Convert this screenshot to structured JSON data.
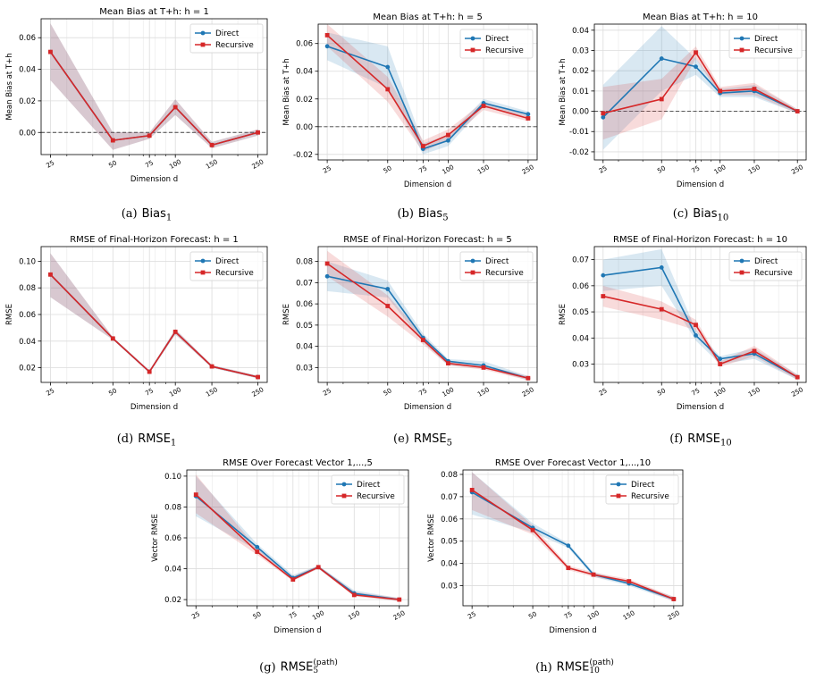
{
  "legend": {
    "direct": "Direct",
    "recursive": "Recursive"
  },
  "colors": {
    "direct": "#1f77b4",
    "recursive": "#d62728"
  },
  "captions": [
    {
      "tag": "(a)",
      "name": "Bias",
      "sub": "1",
      "sup": ""
    },
    {
      "tag": "(b)",
      "name": "Bias",
      "sub": "5",
      "sup": ""
    },
    {
      "tag": "(c)",
      "name": "Bias",
      "sub": "10",
      "sup": ""
    },
    {
      "tag": "(d)",
      "name": "RMSE",
      "sub": "1",
      "sup": ""
    },
    {
      "tag": "(e)",
      "name": "RMSE",
      "sub": "5",
      "sup": ""
    },
    {
      "tag": "(f)",
      "name": "RMSE",
      "sub": "10",
      "sup": ""
    },
    {
      "tag": "(g)",
      "name": "RMSE",
      "sub": "5",
      "sup": "(path)"
    },
    {
      "tag": "(h)",
      "name": "RMSE",
      "sub": "10",
      "sup": "(path)"
    }
  ],
  "chart_data": [
    {
      "type": "line",
      "title": "Mean Bias at T+h: h = 1",
      "xlabel": "Dimension d",
      "ylabel": "Mean Bias at T+h",
      "x": [
        25,
        50,
        75,
        100,
        150,
        250
      ],
      "x_scale": "log",
      "ylim": [
        -0.014,
        0.072
      ],
      "yticks": [
        0.0,
        0.02,
        0.04,
        0.06
      ],
      "tick_decimals": 2,
      "zero_line": true,
      "grid": true,
      "legend_position": "top-right",
      "series": [
        {
          "name": "Direct",
          "values": [
            0.051,
            -0.005,
            -0.002,
            0.016,
            -0.008,
            0.0
          ],
          "band_low": [
            0.033,
            -0.011,
            -0.004,
            0.011,
            -0.01,
            -0.002
          ],
          "band_high": [
            0.069,
            0.0,
            0.0,
            0.021,
            -0.006,
            0.002
          ]
        },
        {
          "name": "Recursive",
          "values": [
            0.051,
            -0.005,
            -0.002,
            0.016,
            -0.008,
            0.0
          ],
          "band_low": [
            0.033,
            -0.011,
            -0.004,
            0.011,
            -0.01,
            -0.002
          ],
          "band_high": [
            0.069,
            0.0,
            0.0,
            0.021,
            -0.006,
            0.002
          ]
        }
      ]
    },
    {
      "type": "line",
      "title": "Mean Bias at T+h: h = 5",
      "xlabel": "Dimension d",
      "ylabel": "Mean Bias at T+h",
      "x": [
        25,
        50,
        75,
        100,
        150,
        250
      ],
      "x_scale": "log",
      "ylim": [
        -0.024,
        0.074
      ],
      "yticks": [
        -0.02,
        0.0,
        0.02,
        0.04,
        0.06
      ],
      "tick_decimals": 2,
      "zero_line": true,
      "grid": true,
      "legend_position": "top-right",
      "series": [
        {
          "name": "Direct",
          "values": [
            0.058,
            0.043,
            -0.016,
            -0.01,
            0.017,
            0.009
          ],
          "band_low": [
            0.048,
            0.028,
            -0.02,
            -0.014,
            0.014,
            0.007
          ],
          "band_high": [
            0.068,
            0.058,
            -0.012,
            -0.006,
            0.02,
            0.011
          ]
        },
        {
          "name": "Recursive",
          "values": [
            0.066,
            0.027,
            -0.014,
            -0.006,
            0.015,
            0.006
          ],
          "band_low": [
            0.058,
            0.018,
            -0.018,
            -0.01,
            0.012,
            0.004
          ],
          "band_high": [
            0.074,
            0.036,
            -0.01,
            -0.002,
            0.018,
            0.008
          ]
        }
      ]
    },
    {
      "type": "line",
      "title": "Mean Bias at T+h: h = 10",
      "xlabel": "Dimension d",
      "ylabel": "Mean Bias at T+h",
      "x": [
        25,
        50,
        75,
        100,
        150,
        250
      ],
      "x_scale": "log",
      "ylim": [
        -0.024,
        0.043
      ],
      "yticks": [
        -0.02,
        -0.01,
        0.0,
        0.01,
        0.02,
        0.03,
        0.04
      ],
      "tick_decimals": 2,
      "zero_line": true,
      "grid": true,
      "legend_position": "top-right",
      "series": [
        {
          "name": "Direct",
          "values": [
            -0.003,
            0.026,
            0.022,
            0.009,
            0.01,
            0.0
          ],
          "band_low": [
            -0.019,
            0.01,
            0.018,
            0.007,
            0.007,
            -0.001
          ],
          "band_high": [
            0.013,
            0.042,
            0.026,
            0.011,
            0.013,
            0.001
          ]
        },
        {
          "name": "Recursive",
          "values": [
            -0.001,
            0.006,
            0.029,
            0.01,
            0.011,
            0.0
          ],
          "band_low": [
            -0.014,
            -0.004,
            0.026,
            0.008,
            0.008,
            -0.001
          ],
          "band_high": [
            0.012,
            0.016,
            0.032,
            0.012,
            0.014,
            0.001
          ]
        }
      ]
    },
    {
      "type": "line",
      "title": "RMSE of Final-Horizon Forecast: h = 1",
      "xlabel": "Dimension d",
      "ylabel": "RMSE",
      "x": [
        25,
        50,
        75,
        100,
        150,
        250
      ],
      "x_scale": "log",
      "ylim": [
        0.009,
        0.111
      ],
      "yticks": [
        0.02,
        0.04,
        0.06,
        0.08,
        0.1
      ],
      "tick_decimals": 2,
      "zero_line": false,
      "grid": true,
      "legend_position": "top-right",
      "series": [
        {
          "name": "Direct",
          "values": [
            0.09,
            0.042,
            0.017,
            0.047,
            0.021,
            0.013
          ],
          "band_low": [
            0.073,
            0.041,
            0.016,
            0.045,
            0.02,
            0.012
          ],
          "band_high": [
            0.106,
            0.043,
            0.018,
            0.049,
            0.022,
            0.014
          ]
        },
        {
          "name": "Recursive",
          "values": [
            0.09,
            0.042,
            0.017,
            0.047,
            0.021,
            0.013
          ],
          "band_low": [
            0.073,
            0.041,
            0.016,
            0.045,
            0.02,
            0.012
          ],
          "band_high": [
            0.106,
            0.043,
            0.018,
            0.049,
            0.022,
            0.014
          ]
        }
      ]
    },
    {
      "type": "line",
      "title": "RMSE of Final-Horizon Forecast: h = 5",
      "xlabel": "Dimension d",
      "ylabel": "RMSE",
      "x": [
        25,
        50,
        75,
        100,
        150,
        250
      ],
      "x_scale": "log",
      "ylim": [
        0.023,
        0.087
      ],
      "yticks": [
        0.03,
        0.04,
        0.05,
        0.06,
        0.07,
        0.08
      ],
      "tick_decimals": 2,
      "zero_line": false,
      "grid": true,
      "legend_position": "top-right",
      "series": [
        {
          "name": "Direct",
          "values": [
            0.073,
            0.067,
            0.044,
            0.033,
            0.031,
            0.025
          ],
          "band_low": [
            0.066,
            0.063,
            0.042,
            0.031,
            0.03,
            0.024
          ],
          "band_high": [
            0.08,
            0.071,
            0.046,
            0.034,
            0.033,
            0.026
          ]
        },
        {
          "name": "Recursive",
          "values": [
            0.079,
            0.059,
            0.043,
            0.032,
            0.03,
            0.025
          ],
          "band_low": [
            0.073,
            0.054,
            0.041,
            0.031,
            0.029,
            0.024
          ],
          "band_high": [
            0.085,
            0.064,
            0.045,
            0.033,
            0.031,
            0.026
          ]
        }
      ]
    },
    {
      "type": "line",
      "title": "RMSE of Final-Horizon Forecast: h = 10",
      "xlabel": "Dimension d",
      "ylabel": "RMSE",
      "x": [
        25,
        50,
        75,
        100,
        150,
        250
      ],
      "x_scale": "log",
      "ylim": [
        0.023,
        0.075
      ],
      "yticks": [
        0.03,
        0.04,
        0.05,
        0.06,
        0.07
      ],
      "tick_decimals": 2,
      "zero_line": false,
      "grid": true,
      "legend_position": "top-right",
      "series": [
        {
          "name": "Direct",
          "values": [
            0.064,
            0.067,
            0.041,
            0.032,
            0.034,
            0.025
          ],
          "band_low": [
            0.058,
            0.06,
            0.039,
            0.03,
            0.032,
            0.024
          ],
          "band_high": [
            0.07,
            0.074,
            0.043,
            0.033,
            0.036,
            0.026
          ]
        },
        {
          "name": "Recursive",
          "values": [
            0.056,
            0.051,
            0.045,
            0.03,
            0.035,
            0.025
          ],
          "band_low": [
            0.052,
            0.047,
            0.043,
            0.029,
            0.033,
            0.024
          ],
          "band_high": [
            0.06,
            0.054,
            0.047,
            0.031,
            0.037,
            0.026
          ]
        }
      ]
    },
    {
      "type": "line",
      "title": "RMSE Over Forecast Vector 1,...,5",
      "xlabel": "Dimension d",
      "ylabel": "Vector RMSE",
      "x": [
        25,
        50,
        75,
        100,
        150,
        250
      ],
      "x_scale": "log",
      "ylim": [
        0.016,
        0.104
      ],
      "yticks": [
        0.02,
        0.04,
        0.06,
        0.08,
        0.1
      ],
      "tick_decimals": 2,
      "zero_line": false,
      "grid": true,
      "legend_position": "top-right",
      "series": [
        {
          "name": "Direct",
          "values": [
            0.087,
            0.054,
            0.034,
            0.041,
            0.024,
            0.02
          ],
          "band_low": [
            0.074,
            0.052,
            0.033,
            0.04,
            0.023,
            0.019
          ],
          "band_high": [
            0.1,
            0.056,
            0.036,
            0.042,
            0.026,
            0.021
          ]
        },
        {
          "name": "Recursive",
          "values": [
            0.088,
            0.051,
            0.033,
            0.041,
            0.023,
            0.02
          ],
          "band_low": [
            0.076,
            0.049,
            0.032,
            0.04,
            0.022,
            0.019
          ],
          "band_high": [
            0.101,
            0.053,
            0.035,
            0.042,
            0.025,
            0.021
          ]
        }
      ]
    },
    {
      "type": "line",
      "title": "RMSE Over Forecast Vector 1,...,10",
      "xlabel": "Dimension d",
      "ylabel": "Vector RMSE",
      "x": [
        25,
        50,
        75,
        100,
        150,
        250
      ],
      "x_scale": "log",
      "ylim": [
        0.021,
        0.082
      ],
      "yticks": [
        0.03,
        0.04,
        0.05,
        0.06,
        0.07,
        0.08
      ],
      "tick_decimals": 2,
      "zero_line": false,
      "grid": true,
      "legend_position": "top-right",
      "series": [
        {
          "name": "Direct",
          "values": [
            0.072,
            0.056,
            0.048,
            0.035,
            0.031,
            0.024
          ],
          "band_low": [
            0.062,
            0.054,
            0.047,
            0.034,
            0.03,
            0.023
          ],
          "band_high": [
            0.081,
            0.058,
            0.049,
            0.036,
            0.032,
            0.025
          ]
        },
        {
          "name": "Recursive",
          "values": [
            0.073,
            0.055,
            0.038,
            0.035,
            0.032,
            0.024
          ],
          "band_low": [
            0.064,
            0.053,
            0.037,
            0.034,
            0.031,
            0.023
          ],
          "band_high": [
            0.081,
            0.057,
            0.039,
            0.036,
            0.033,
            0.025
          ]
        }
      ]
    }
  ]
}
